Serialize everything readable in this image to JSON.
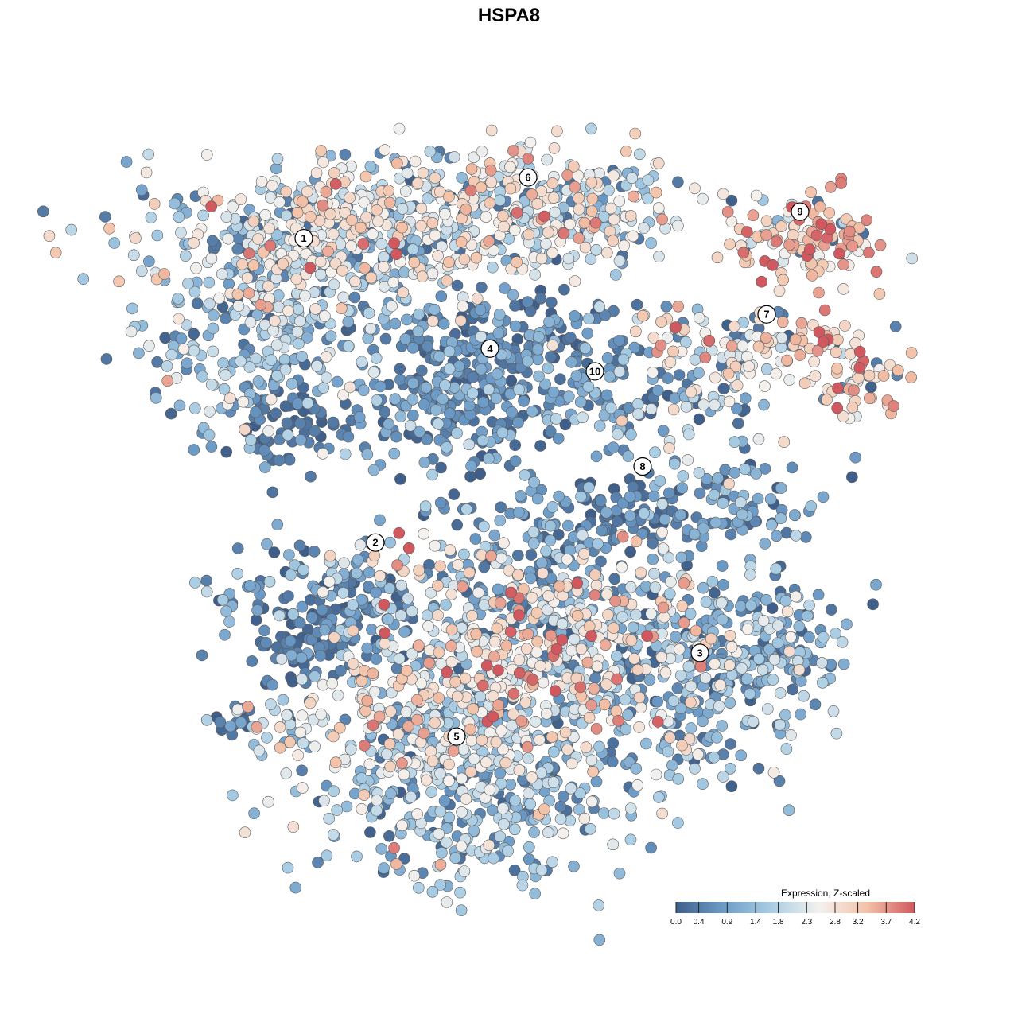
{
  "chart_data": {
    "type": "scatter",
    "title": "HSPA8",
    "xlabel": "",
    "ylabel": "",
    "grid": false,
    "legend": {
      "title": "Expression, Z-scaled",
      "placement": "bottom-right",
      "ticks": [
        0.0,
        0.4,
        0.9,
        1.4,
        1.8,
        2.3,
        2.8,
        3.2,
        3.7,
        4.2
      ],
      "tick_labels": [
        "0.0",
        "0.4",
        "0.9",
        "1.4",
        "1.8",
        "2.3",
        "2.8",
        "3.2",
        "3.7",
        "4.2"
      ],
      "range": [
        0.0,
        4.2
      ],
      "colors": [
        "#3f5f8a",
        "#6d9cc8",
        "#a9cde4",
        "#f4f1ee",
        "#f3c2a8",
        "#d1585f"
      ]
    },
    "clusters": [
      {
        "label": "1",
        "x": -21.5,
        "y": 24.5,
        "mean_expression": 2.1
      },
      {
        "label": "2",
        "x": -14.0,
        "y": -15.5,
        "mean_expression": 1.2
      },
      {
        "label": "3",
        "x": 20.0,
        "y": -30.0,
        "mean_expression": 1.4
      },
      {
        "label": "4",
        "x": -2.0,
        "y": 10.0,
        "mean_expression": 0.8
      },
      {
        "label": "5",
        "x": -5.5,
        "y": -41.0,
        "mean_expression": 1.6
      },
      {
        "label": "6",
        "x": 2.0,
        "y": 32.5,
        "mean_expression": 2.4
      },
      {
        "label": "7",
        "x": 27.0,
        "y": 14.5,
        "mean_expression": 3.0
      },
      {
        "label": "8",
        "x": 14.0,
        "y": -5.5,
        "mean_expression": 0.9
      },
      {
        "label": "9",
        "x": 30.5,
        "y": 28.0,
        "mean_expression": 3.1
      },
      {
        "label": "10",
        "x": 9.0,
        "y": 7.0,
        "mean_expression": 1.0
      }
    ]
  }
}
